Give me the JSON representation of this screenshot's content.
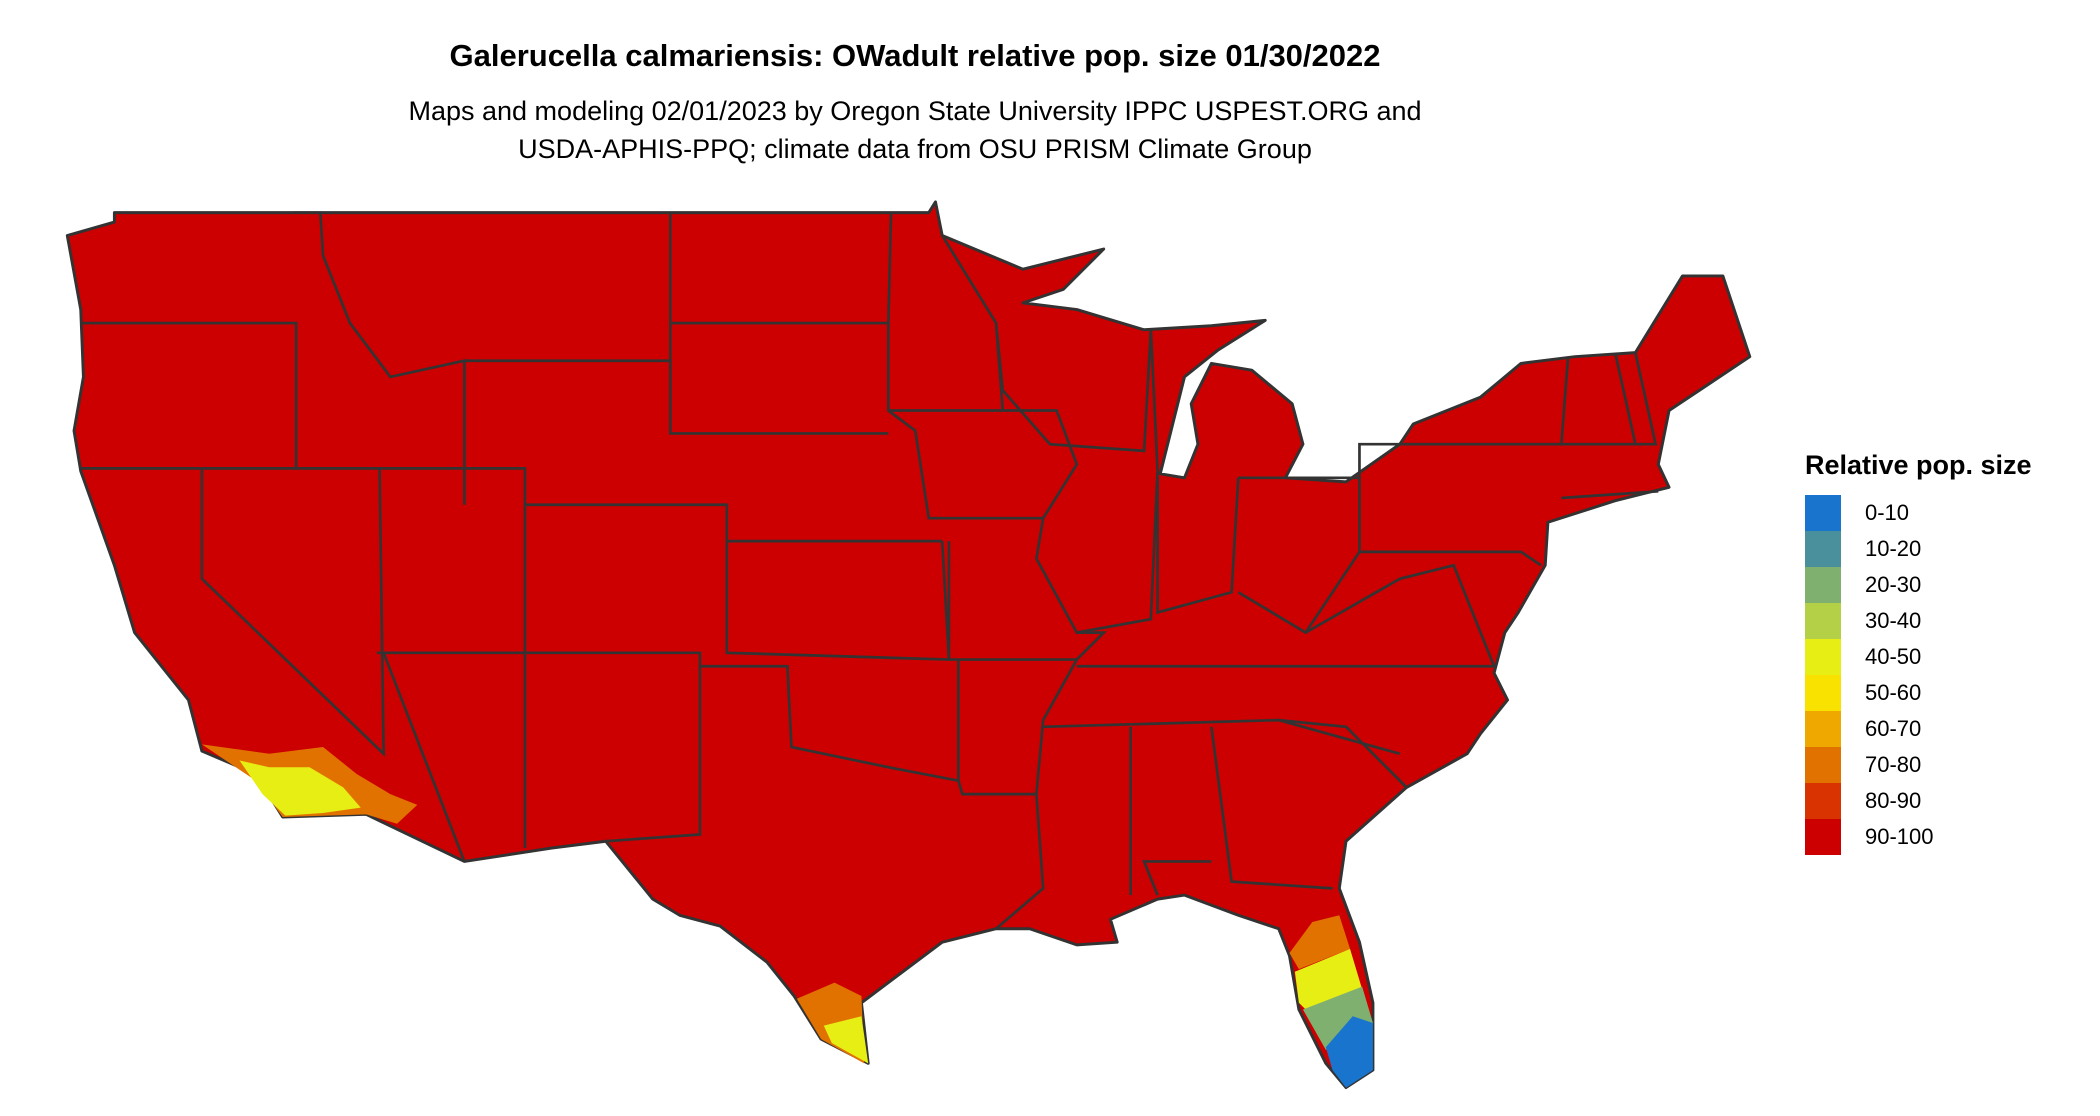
{
  "title": "Galerucella calmariensis: OWadult relative pop. size 01/30/2022",
  "subtitle_line1": "Maps and modeling 02/01/2023 by Oregon State University IPPC USPEST.ORG and",
  "subtitle_line2": "USDA-APHIS-PPQ; climate data from OSU PRISM Climate Group",
  "legend": {
    "title": "Relative pop. size",
    "items": [
      {
        "label": "0-10",
        "color": "#1874CD"
      },
      {
        "label": "10-20",
        "color": "#4A8F9C"
      },
      {
        "label": "20-30",
        "color": "#7FB070"
      },
      {
        "label": "30-40",
        "color": "#B3D046"
      },
      {
        "label": "40-50",
        "color": "#E6EE14"
      },
      {
        "label": "50-60",
        "color": "#F9E200"
      },
      {
        "label": "60-70",
        "color": "#EFA800"
      },
      {
        "label": "70-80",
        "color": "#E27200"
      },
      {
        "label": "80-90",
        "color": "#D83300"
      },
      {
        "label": "90-100",
        "color": "#CC0000"
      }
    ]
  },
  "map": {
    "region": "Contiguous United States",
    "dominant_class": "90-100",
    "border_color": "#333333"
  }
}
